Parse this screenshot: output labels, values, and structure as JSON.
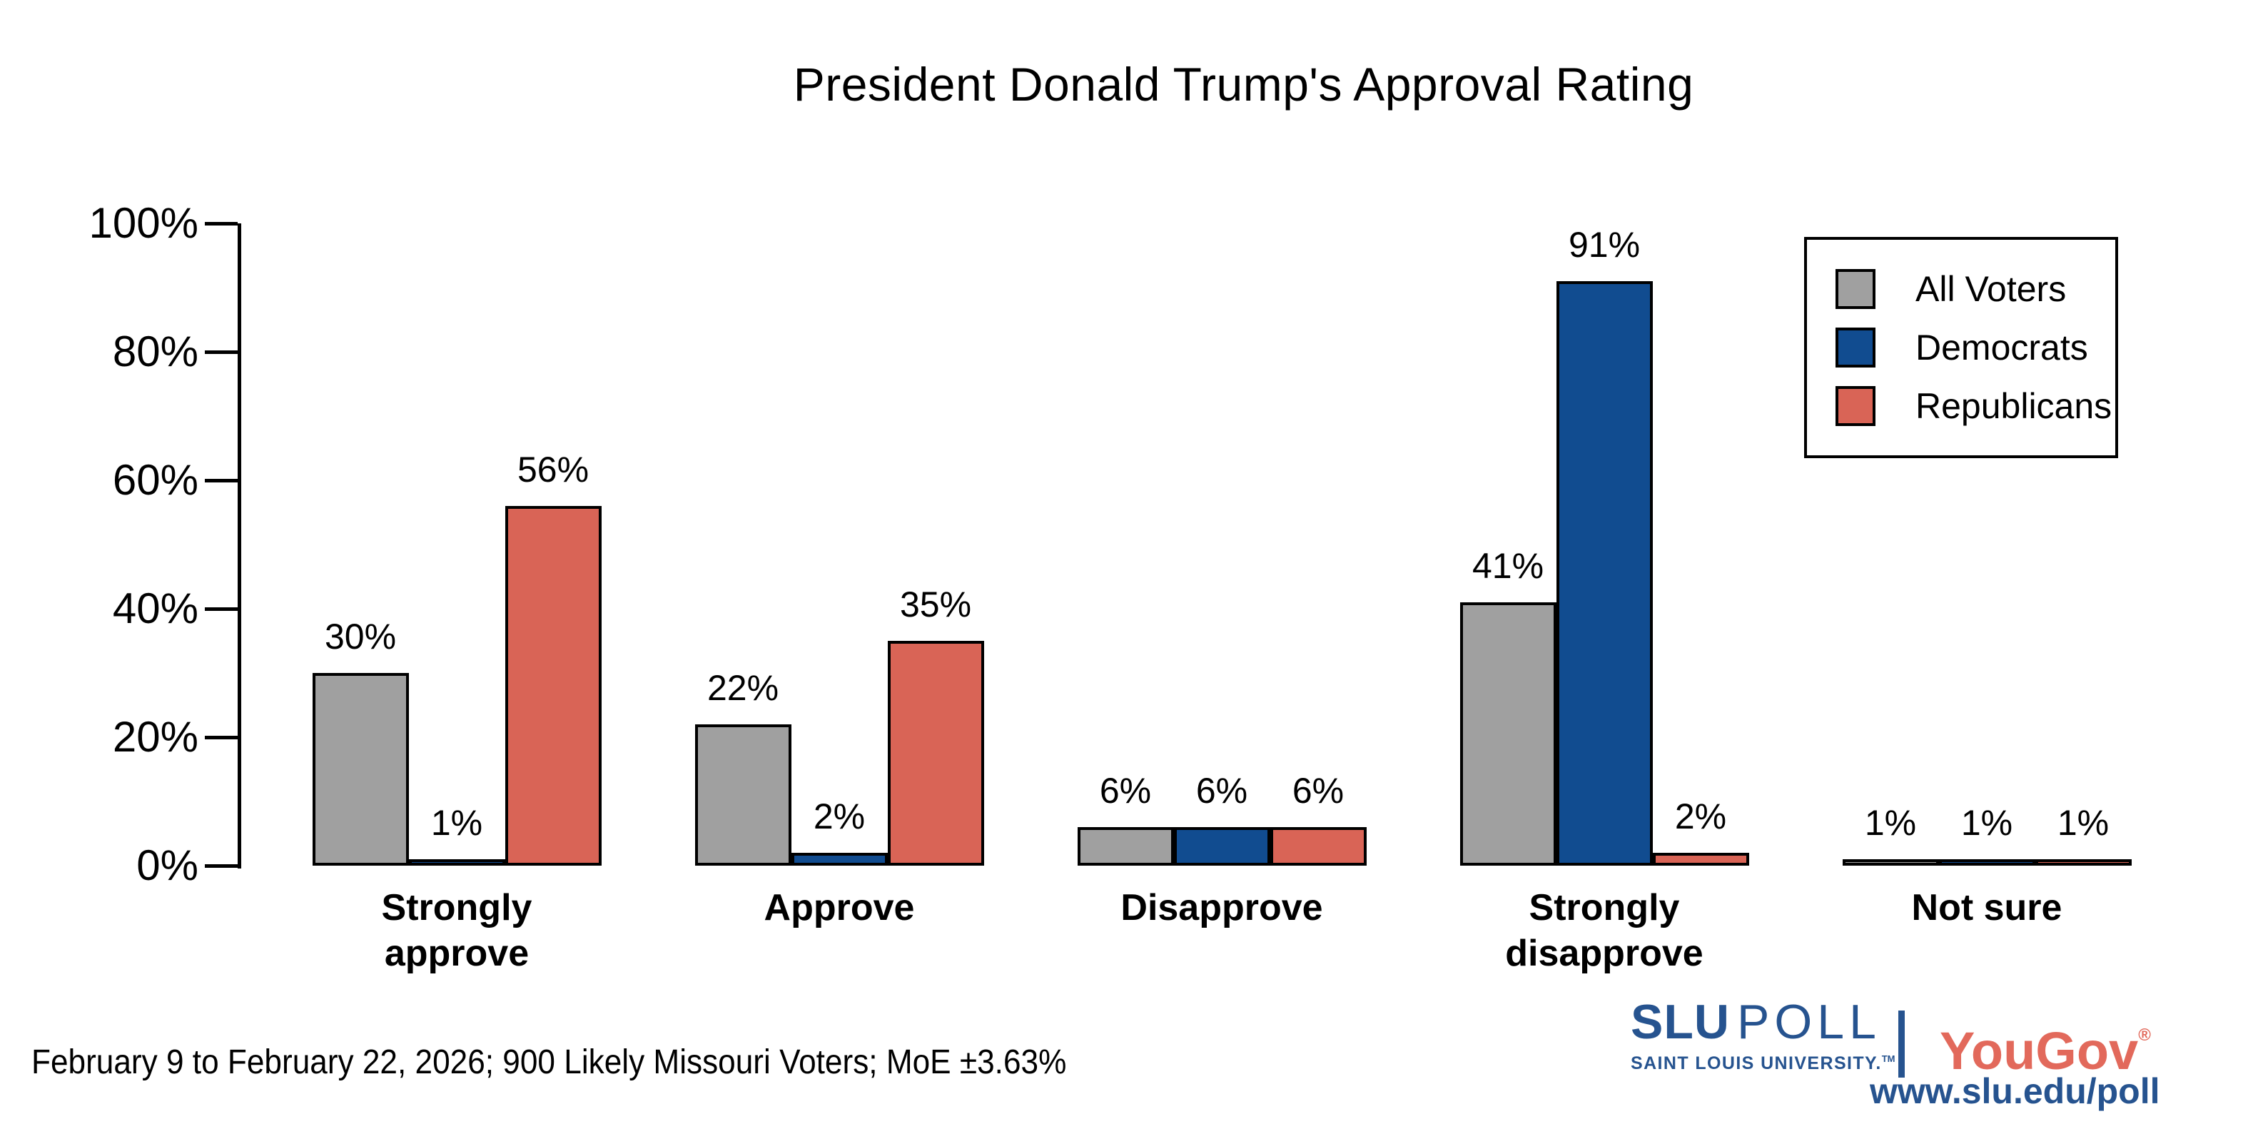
{
  "title": "President Donald Trump's Approval Rating",
  "footer": {
    "note": "February 9 to February 22, 2026; 900 Likely Missouri Voters; MoE ±3.63%"
  },
  "branding": {
    "slu": "SLU",
    "poll": "POLL",
    "slu_subtitle": "SAINT LOUIS UNIVERSITY.",
    "tm": "TM",
    "yougov": "YouGov",
    "reg": "®",
    "url": "www.slu.edu/poll",
    "slu_blue": "#26538f",
    "yougov_red": "#e2695b"
  },
  "chart_data": {
    "type": "bar",
    "title": "President Donald Trump's Approval Rating",
    "categories": [
      "Strongly approve",
      "Approve",
      "Disapprove",
      "Strongly disapprove",
      "Not sure"
    ],
    "categories_display": [
      "Strongly\napprove",
      "Approve",
      "Disapprove",
      "Strongly\ndisapprove",
      "Not sure"
    ],
    "series": [
      {
        "name": "All Voters",
        "color": "#a0a0a0",
        "values": [
          30,
          22,
          6,
          41,
          1
        ]
      },
      {
        "name": "Democrats",
        "color": "#114c90",
        "values": [
          1,
          2,
          6,
          91,
          1
        ]
      },
      {
        "name": "Republicans",
        "color": "#d96456",
        "values": [
          56,
          35,
          6,
          2,
          1
        ]
      }
    ],
    "xlabel": "",
    "ylabel": "",
    "ylim": [
      0,
      100
    ],
    "yticks": [
      "0%",
      "20%",
      "40%",
      "60%",
      "80%",
      "100%"
    ],
    "ytick_values": [
      0,
      20,
      40,
      60,
      80,
      100
    ],
    "value_label_format": "{v}%",
    "bar_outline_color": "#000000",
    "grid": false,
    "legend_position": "top-right",
    "background": "#ffffff"
  }
}
